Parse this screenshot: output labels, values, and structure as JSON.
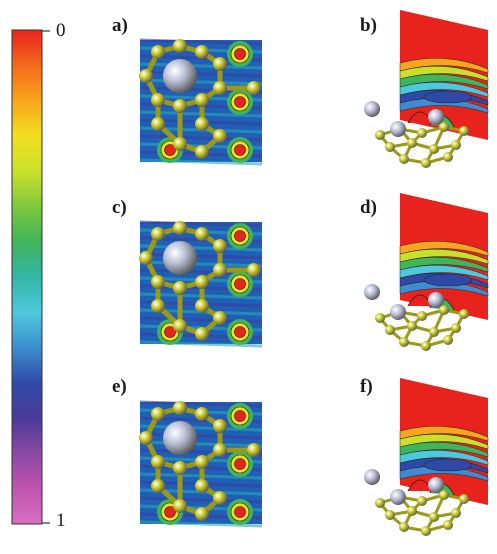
{
  "colorbar": {
    "top_label": "0",
    "bottom_label": "1",
    "colors": [
      "#e8231e",
      "#f36a1a",
      "#f6a51c",
      "#f2df1e",
      "#c9e02a",
      "#7ec83c",
      "#3fb45a",
      "#34b5a6",
      "#4fc8dc",
      "#3d8ed0",
      "#2f4aa6",
      "#4a3a9a",
      "#8a4aa4",
      "#c054b0",
      "#d86fc0"
    ]
  },
  "panels": [
    {
      "id": "a",
      "label": "a)",
      "view": "top"
    },
    {
      "id": "b",
      "label": "b)",
      "view": "side"
    },
    {
      "id": "c",
      "label": "c)",
      "view": "top"
    },
    {
      "id": "d",
      "label": "d)",
      "view": "side"
    },
    {
      "id": "e",
      "label": "e)",
      "view": "top"
    },
    {
      "id": "f",
      "label": "f)",
      "view": "side"
    }
  ],
  "atoms": {
    "carbon_color": "#c8c81e",
    "adatom_color": "#b9bfd6"
  }
}
